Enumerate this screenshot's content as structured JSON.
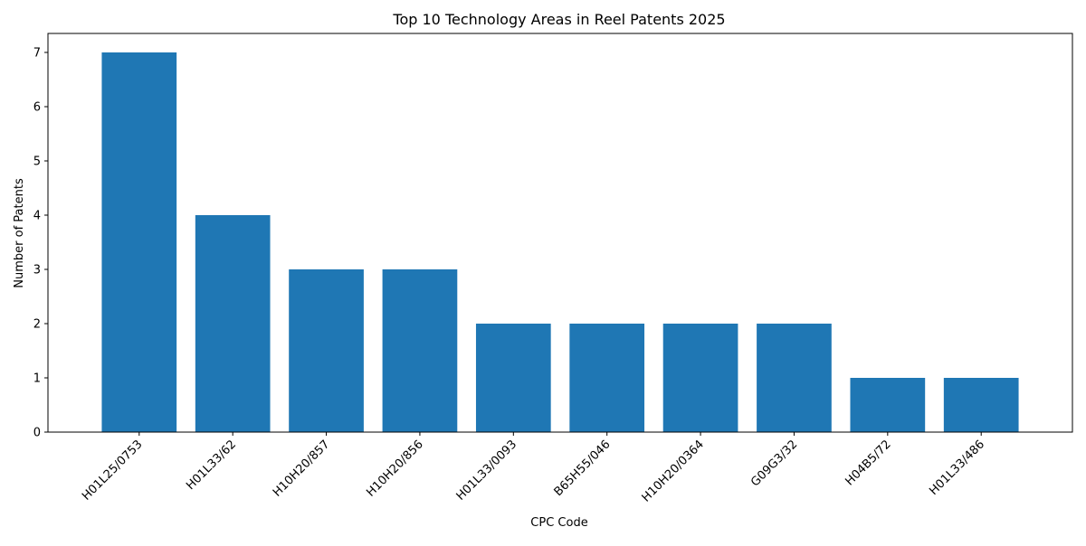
{
  "chart_data": {
    "type": "bar",
    "title": "Top 10 Technology Areas in Reel Patents 2025",
    "xlabel": "CPC Code",
    "ylabel": "Number of Patents",
    "categories": [
      "H01L25/0753",
      "H01L33/62",
      "H10H20/857",
      "H10H20/856",
      "H01L33/0093",
      "B65H55/046",
      "H10H20/0364",
      "G09G3/32",
      "H04B5/72",
      "H01L33/486"
    ],
    "values": [
      7,
      4,
      3,
      3,
      2,
      2,
      2,
      2,
      1,
      1
    ],
    "ylim": [
      0,
      7.35
    ],
    "yticks": [
      0,
      1,
      2,
      3,
      4,
      5,
      6,
      7
    ],
    "grid": false,
    "legend": "none",
    "bar_color": "#1f77b4"
  }
}
